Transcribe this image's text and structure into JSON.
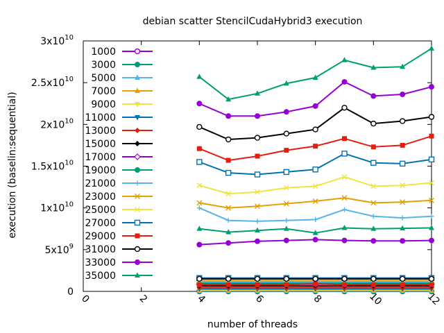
{
  "chart_data": {
    "type": "line",
    "title": "debian scatter StencilCudaHybrid3 execution",
    "xlabel": "number of threads",
    "ylabel": "execution (baselin:sequential)",
    "xlim": [
      0,
      12
    ],
    "ylim": [
      0,
      30000000000
    ],
    "x_ticks": [
      0,
      2,
      4,
      6,
      8,
      10,
      12
    ],
    "x_tick_labels": [
      "0",
      "2",
      "4",
      "6",
      "8",
      "10",
      "12"
    ],
    "y_ticks": [
      0,
      5000000000,
      10000000000,
      15000000000,
      20000000000,
      25000000000,
      30000000000
    ],
    "y_tick_labels": [
      {
        "base": "0",
        "exp": ""
      },
      {
        "base": "5x10",
        "exp": "9"
      },
      {
        "base": "1x10",
        "exp": "10"
      },
      {
        "base": "1.5x10",
        "exp": "10"
      },
      {
        "base": "2x10",
        "exp": "10"
      },
      {
        "base": "2.5x10",
        "exp": "10"
      },
      {
        "base": "3x10",
        "exp": "10"
      }
    ],
    "grid": false,
    "legend_position": "top-left",
    "x": [
      4,
      5,
      6,
      7,
      8,
      9,
      10,
      11,
      12
    ],
    "series": [
      {
        "name": "1000",
        "color": "#9400d3",
        "marker": "circle-open",
        "values": [
          1000000,
          1000000,
          1000000,
          1000000,
          1000000,
          1000000,
          1000000,
          1000000,
          1000000
        ]
      },
      {
        "name": "3000",
        "color": "#009e73",
        "marker": "circle-filled",
        "values": [
          20000000,
          20000000,
          20000000,
          20000000,
          20000000,
          20000000,
          20000000,
          20000000,
          20000000
        ]
      },
      {
        "name": "5000",
        "color": "#56b4e9",
        "marker": "triangle-up",
        "values": [
          60000000,
          60000000,
          60000000,
          60000000,
          60000000,
          60000000,
          60000000,
          60000000,
          60000000
        ]
      },
      {
        "name": "7000",
        "color": "#e69f00",
        "marker": "triangle-up",
        "values": [
          120000000,
          120000000,
          120000000,
          120000000,
          120000000,
          120000000,
          120000000,
          120000000,
          120000000
        ]
      },
      {
        "name": "9000",
        "color": "#f0e442",
        "marker": "triangle-down",
        "values": [
          180000000,
          180000000,
          180000000,
          180000000,
          180000000,
          180000000,
          180000000,
          180000000,
          180000000
        ]
      },
      {
        "name": "11000",
        "color": "#0072b2",
        "marker": "triangle-down",
        "values": [
          280000000,
          280000000,
          280000000,
          280000000,
          280000000,
          280000000,
          280000000,
          280000000,
          280000000
        ]
      },
      {
        "name": "13000",
        "color": "#e51e10",
        "marker": "diamond",
        "values": [
          450000000,
          450000000,
          450000000,
          450000000,
          450000000,
          450000000,
          450000000,
          450000000,
          450000000
        ]
      },
      {
        "name": "15000",
        "color": "#000000",
        "marker": "diamond",
        "values": [
          650000000,
          650000000,
          650000000,
          650000000,
          650000000,
          650000000,
          650000000,
          650000000,
          650000000
        ]
      },
      {
        "name": "17000",
        "color": "#9400d3",
        "marker": "diamond-open",
        "values": [
          850000000,
          850000000,
          850000000,
          850000000,
          850000000,
          850000000,
          850000000,
          850000000,
          850000000
        ]
      },
      {
        "name": "19000",
        "color": "#009e73",
        "marker": "circle-filled",
        "values": [
          1000000000,
          1000000000,
          1000000000,
          1000000000,
          1000000000,
          1000000000,
          1000000000,
          1000000000,
          1000000000
        ]
      },
      {
        "name": "21000",
        "color": "#56b4e9",
        "marker": "plus",
        "values": [
          1150000000,
          1150000000,
          1150000000,
          1150000000,
          1150000000,
          1150000000,
          1150000000,
          1150000000,
          1150000000
        ]
      },
      {
        "name": "23000",
        "color": "#e69f00",
        "marker": "cross",
        "values": [
          1300000000,
          1300000000,
          1300000000,
          1300000000,
          1300000000,
          1300000000,
          1300000000,
          1300000000,
          1300000000
        ]
      },
      {
        "name": "25000",
        "color": "#f0e442",
        "marker": "cross",
        "values": [
          1450000000,
          1450000000,
          1450000000,
          1450000000,
          1450000000,
          1450000000,
          1450000000,
          1450000000,
          1450000000
        ]
      },
      {
        "name": "27000",
        "color": "#0072b2",
        "marker": "square-open",
        "values": [
          1600000000,
          1600000000,
          1600000000,
          1600000000,
          1600000000,
          1600000000,
          1600000000,
          1600000000,
          1600000000
        ]
      },
      {
        "name": "29000",
        "color": "#e51e10",
        "marker": "square-filled",
        "values": [
          800000000,
          800000000,
          800000000,
          800000000,
          900000000,
          800000000,
          800000000,
          800000000,
          800000000
        ]
      },
      {
        "name": "31000",
        "color": "#000000",
        "marker": "circle-open",
        "values": [
          1500000000,
          1500000000,
          1500000000,
          1500000000,
          1500000000,
          1500000000,
          1500000000,
          1500000000,
          1500000000
        ]
      },
      {
        "name": "33000",
        "color": "#9400d3",
        "marker": "circle-filled",
        "values": [
          5600000000,
          5800000000,
          6000000000,
          6100000000,
          6200000000,
          6100000000,
          6050000000,
          6050000000,
          6100000000
        ]
      },
      {
        "name": "35000",
        "color": "#009e73",
        "marker": "triangle-up",
        "values": [
          7500000000,
          7100000000,
          7300000000,
          7500000000,
          7000000000,
          7600000000,
          7500000000,
          7550000000,
          7600000000
        ]
      },
      {
        "name": "",
        "color": "#56b4e9",
        "marker": "plus",
        "values": [
          10000000000,
          8500000000,
          8400000000,
          8500000000,
          8600000000,
          9800000000,
          9000000000,
          8800000000,
          9000000000
        ]
      },
      {
        "name": "",
        "color": "#e69f00",
        "marker": "cross",
        "values": [
          10600000000,
          10000000000,
          10200000000,
          10500000000,
          10800000000,
          11200000000,
          10600000000,
          10700000000,
          10900000000
        ]
      },
      {
        "name": "",
        "color": "#f0e442",
        "marker": "cross",
        "values": [
          12700000000,
          11700000000,
          11900000000,
          12400000000,
          12600000000,
          13700000000,
          12600000000,
          12700000000,
          13000000000
        ]
      },
      {
        "name": "",
        "color": "#0072b2",
        "marker": "square-open",
        "values": [
          15500000000,
          14200000000,
          14000000000,
          14300000000,
          14600000000,
          16500000000,
          15400000000,
          15300000000,
          15800000000
        ]
      },
      {
        "name": "",
        "color": "#e51e10",
        "marker": "square-filled",
        "values": [
          17100000000,
          15700000000,
          16200000000,
          16900000000,
          17400000000,
          18300000000,
          17300000000,
          17500000000,
          18600000000
        ]
      },
      {
        "name": "",
        "color": "#000000",
        "marker": "circle-open",
        "values": [
          19700000000,
          18200000000,
          18400000000,
          18900000000,
          19400000000,
          22000000000,
          20100000000,
          20400000000,
          20900000000
        ]
      },
      {
        "name": "",
        "color": "#9400d3",
        "marker": "circle-filled",
        "values": [
          22500000000,
          21000000000,
          21000000000,
          21500000000,
          22200000000,
          25100000000,
          23400000000,
          23600000000,
          24500000000
        ]
      },
      {
        "name": "",
        "color": "#009e73",
        "marker": "triangle-up",
        "values": [
          25700000000,
          23000000000,
          23700000000,
          24900000000,
          25600000000,
          27700000000,
          26800000000,
          26900000000,
          29100000000
        ]
      }
    ]
  }
}
